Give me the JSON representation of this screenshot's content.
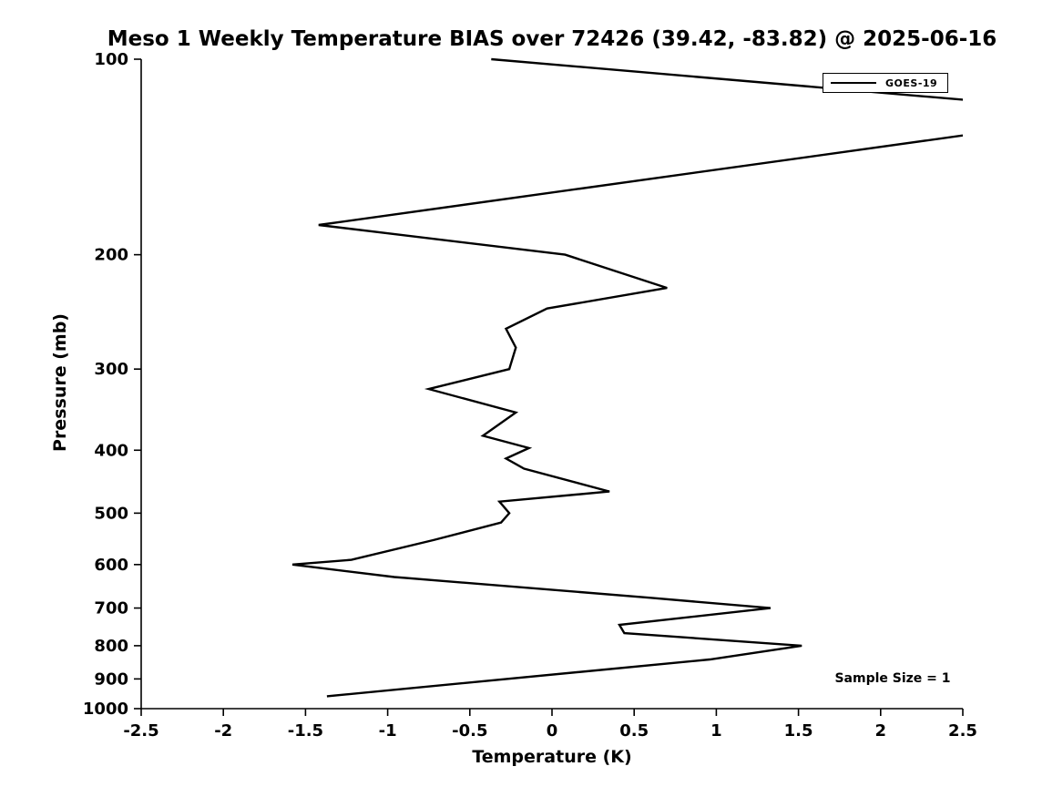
{
  "chart_data": {
    "type": "line",
    "title": "Meso 1 Weekly Temperature BIAS over 72426 (39.42, -83.82) @ 2025-06-16",
    "xlabel": "Temperature (K)",
    "ylabel": "Pressure (mb)",
    "xlim": [
      -2.5,
      2.5
    ],
    "ylim": [
      100,
      1000
    ],
    "yscale": "log",
    "y_inverted": true,
    "grid": false,
    "xticks": [
      -2.5,
      -2,
      -1.5,
      -1,
      -0.5,
      0,
      0.5,
      1,
      1.5,
      2,
      2.5
    ],
    "xtick_labels": [
      "-2.5",
      "-2",
      "-1.5",
      "-1",
      "-0.5",
      "0",
      "0.5",
      "1",
      "1.5",
      "2",
      "2.5"
    ],
    "yticks": [
      100,
      200,
      300,
      400,
      500,
      600,
      700,
      800,
      900,
      1000
    ],
    "ytick_labels": [
      "100",
      "200",
      "300",
      "400",
      "500",
      "600",
      "700",
      "800",
      "900",
      "1000"
    ],
    "line_color": "#000000",
    "legend": {
      "position": "top-right",
      "entries": [
        {
          "label": "GOES-19",
          "color": "#000000"
        }
      ]
    },
    "annotation": "Sample Size = 1",
    "series": [
      {
        "name": "GOES-19",
        "color": "#000000",
        "points_temperature_pressure": [
          [
            -0.37,
            100
          ],
          [
            2.6,
            116
          ],
          [
            2.6,
            130
          ],
          [
            -1.42,
            180
          ],
          [
            0.08,
            200
          ],
          [
            0.7,
            225
          ],
          [
            -0.03,
            242
          ],
          [
            -0.28,
            260
          ],
          [
            -0.22,
            278
          ],
          [
            -0.26,
            300
          ],
          [
            -0.75,
            322
          ],
          [
            -0.22,
            350
          ],
          [
            -0.42,
            380
          ],
          [
            -0.14,
            397
          ],
          [
            -0.28,
            412
          ],
          [
            -0.17,
            427
          ],
          [
            0.35,
            463
          ],
          [
            -0.32,
            480
          ],
          [
            -0.26,
            500
          ],
          [
            -0.31,
            517
          ],
          [
            -0.72,
            550
          ],
          [
            -1.22,
            590
          ],
          [
            -1.58,
            600
          ],
          [
            -0.96,
            627
          ],
          [
            0.6,
            675
          ],
          [
            1.33,
            700
          ],
          [
            0.41,
            743
          ],
          [
            0.44,
            765
          ],
          [
            1.52,
            800
          ],
          [
            0.96,
            840
          ],
          [
            -1.37,
            957
          ]
        ]
      }
    ]
  }
}
